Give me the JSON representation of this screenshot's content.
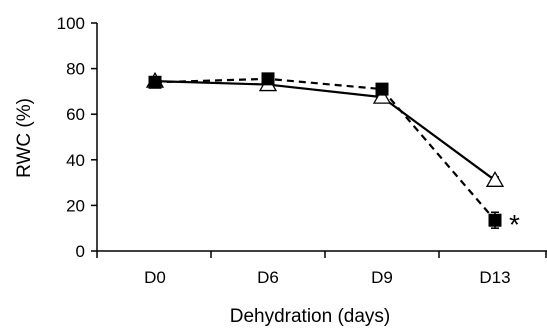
{
  "chart_data": {
    "type": "line",
    "xlabel": "Dehydration (days)",
    "ylabel": "RWC (%)",
    "categories": [
      "D0",
      "D6",
      "D9",
      "D13"
    ],
    "ylim": [
      0,
      100
    ],
    "yticks": [
      "0",
      "20",
      "40",
      "60",
      "80",
      "100"
    ],
    "grid": false,
    "legend": "none",
    "series": [
      {
        "marker": "open-triangle",
        "line_style": "solid",
        "values": [
          74.5,
          73,
          67.5,
          31
        ],
        "error": [
          1.5,
          1.5,
          1.5,
          1.5
        ]
      },
      {
        "marker": "filled-square",
        "line_style": "dashed",
        "values": [
          74,
          75.5,
          71,
          13.5
        ],
        "error": [
          1.5,
          1.5,
          1.5,
          3.5
        ]
      }
    ],
    "annotations": [
      {
        "text": "*",
        "category": "D13",
        "series_index": 1
      }
    ]
  }
}
